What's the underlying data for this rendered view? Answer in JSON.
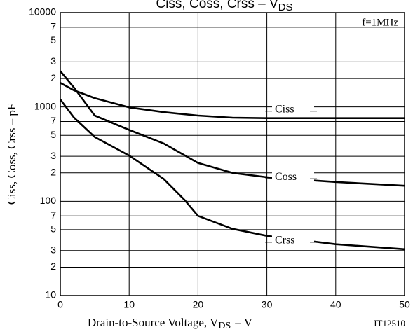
{
  "chart_data": {
    "type": "line",
    "title": [
      "Ciss,  Coss,  Crss  –",
      "V",
      "DS"
    ],
    "xlabel": [
      "Drain-to-Source Voltage, V",
      "DS",
      "–  V"
    ],
    "ylabel": "Ciss,  Coss,  Crss  –  pF",
    "annotations": [
      "f=1MHz",
      "IT12510"
    ],
    "xlim": [
      0,
      50
    ],
    "xticks": [
      0,
      10,
      20,
      30,
      40,
      50
    ],
    "ylim": [
      10,
      10000
    ],
    "log_y": true,
    "grid": true,
    "yticks": [
      10000,
      {
        "value": 7000,
        "label": "7"
      },
      {
        "value": 5000,
        "label": "5"
      },
      {
        "value": 3000,
        "label": "3"
      },
      {
        "value": 2000,
        "label": "2"
      },
      1000,
      {
        "value": 700,
        "label": "7"
      },
      {
        "value": 500,
        "label": "5"
      },
      {
        "value": 300,
        "label": "3"
      },
      {
        "value": 200,
        "label": "2"
      },
      100,
      {
        "value": 70,
        "label": "7"
      },
      {
        "value": 50,
        "label": "5"
      },
      {
        "value": 30,
        "label": "3"
      },
      {
        "value": 20,
        "label": "2"
      },
      10
    ],
    "series": [
      {
        "name": "Ciss",
        "color": "#000000",
        "x": [
          0,
          2,
          5,
          10,
          15,
          20,
          25,
          30,
          40,
          50
        ],
        "values": [
          1800,
          1500,
          1240,
          990,
          880,
          810,
          770,
          760,
          760,
          760
        ]
      },
      {
        "name": "Coss",
        "color": "#000000",
        "x": [
          0,
          2,
          5,
          10,
          15,
          20,
          25,
          30,
          40,
          50
        ],
        "values": [
          2400,
          1600,
          810,
          570,
          410,
          255,
          200,
          180,
          160,
          146
        ]
      },
      {
        "name": "Crss",
        "color": "#000000",
        "x": [
          0,
          2,
          5,
          10,
          15,
          18,
          20,
          25,
          30,
          40,
          50
        ],
        "values": [
          1200,
          770,
          480,
          305,
          173,
          104,
          70,
          51,
          43,
          35,
          31
        ]
      }
    ]
  }
}
